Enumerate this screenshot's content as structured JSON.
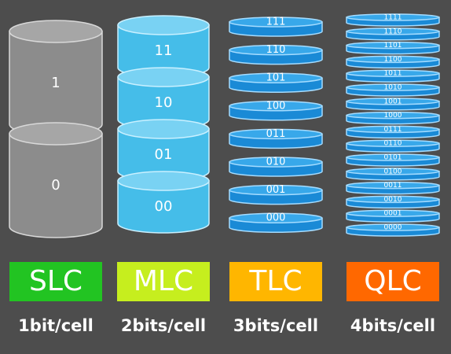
{
  "columns": [
    {
      "name": "SLC",
      "caption": "1bit/cell",
      "levels": [
        "1",
        "0"
      ]
    },
    {
      "name": "MLC",
      "caption": "2bits/cell",
      "levels": [
        "11",
        "10",
        "01",
        "00"
      ]
    },
    {
      "name": "TLC",
      "caption": "3bits/cell",
      "levels": [
        "111",
        "110",
        "101",
        "100",
        "011",
        "010",
        "001",
        "000"
      ]
    },
    {
      "name": "QLC",
      "caption": "4bits/cell",
      "levels": [
        "1111",
        "1110",
        "1101",
        "1100",
        "1011",
        "1010",
        "1001",
        "1000",
        "0111",
        "0110",
        "0101",
        "0100",
        "0011",
        "0010",
        "0001",
        "0000"
      ]
    }
  ]
}
